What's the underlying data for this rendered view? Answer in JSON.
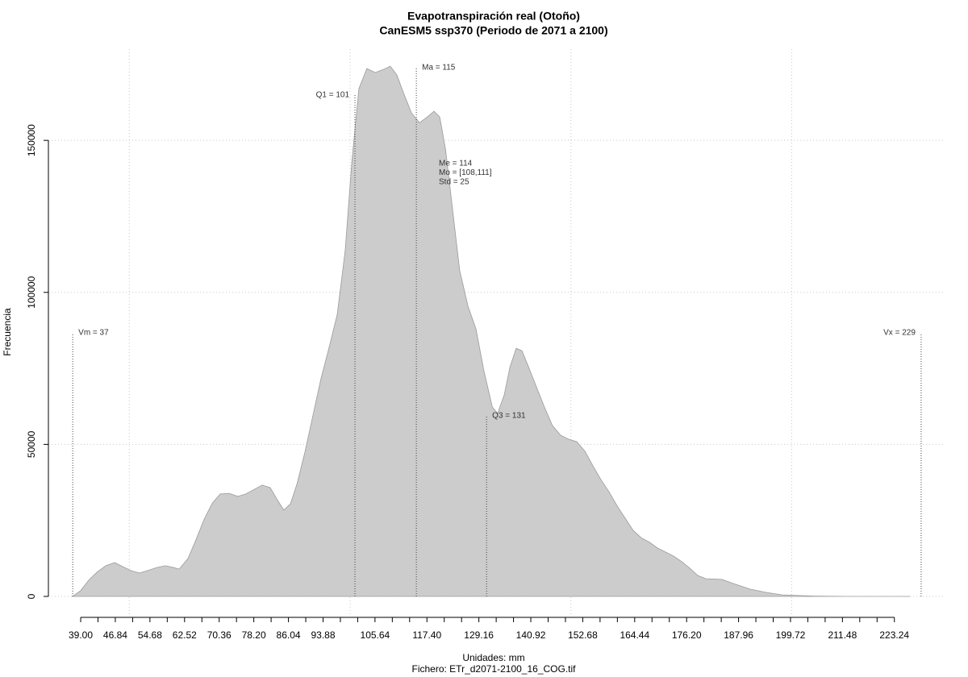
{
  "chart_data": {
    "type": "area",
    "title": "Evapotranspiración real (Otoño)",
    "subtitle": "CanESM5 ssp370 (Periodo de 2071 a 2100)",
    "xlabel": "Unidades: mm",
    "caption": "Fichero: ETr_d2071-2100_16_COG.tif",
    "ylabel": "Frecuencia",
    "color": "#cccccc",
    "edge_color": "#9a9a9a",
    "x": [
      37.2,
      39.0,
      40.8,
      42.7,
      44.7,
      46.7,
      48.5,
      50.3,
      52.3,
      54.2,
      56.2,
      58.2,
      60.0,
      61.3,
      63.3,
      65.1,
      66.9,
      68.8,
      70.6,
      72.6,
      74.6,
      76.4,
      78.3,
      80.1,
      81.9,
      83.7,
      85.0,
      86.5,
      88.0,
      89.8,
      91.6,
      93.4,
      95.3,
      97.1,
      98.9,
      100.4,
      102.0,
      103.8,
      105.7,
      107.5,
      109.1,
      110.6,
      112.1,
      113.9,
      115.7,
      117.5,
      119.0,
      120.3,
      121.6,
      123.0,
      124.8,
      126.7,
      128.5,
      130.3,
      132.2,
      133.4,
      134.9,
      136.2,
      137.6,
      138.9,
      140.4,
      142.2,
      144.0,
      145.8,
      147.7,
      149.5,
      151.3,
      153.2,
      155.0,
      156.8,
      158.6,
      160.5,
      162.3,
      164.1,
      165.9,
      167.8,
      169.6,
      171.4,
      173.2,
      175.1,
      176.9,
      178.7,
      180.6,
      184.2,
      186.9,
      190.6,
      194.3,
      197.9,
      201.6,
      205.2,
      212.5,
      226.8
    ],
    "values": [
      0,
      1900,
      5300,
      8000,
      10100,
      11100,
      9800,
      8500,
      7700,
      8500,
      9500,
      10100,
      9500,
      9000,
      12500,
      18600,
      25200,
      30700,
      33700,
      33900,
      32900,
      33700,
      35200,
      36600,
      35800,
      31300,
      28400,
      30500,
      37100,
      47700,
      59600,
      71600,
      82200,
      92800,
      114000,
      143100,
      167000,
      173600,
      172300,
      173300,
      174400,
      171500,
      165600,
      159000,
      155800,
      157700,
      159600,
      157700,
      147100,
      129900,
      107300,
      95400,
      88000,
      74200,
      62300,
      60200,
      66300,
      75500,
      81600,
      80800,
      75500,
      68900,
      62300,
      56200,
      53000,
      51700,
      50900,
      47700,
      42900,
      38400,
      34500,
      29700,
      25700,
      21700,
      19300,
      17800,
      15900,
      14600,
      13300,
      11400,
      9300,
      6900,
      5800,
      5600,
      4200,
      2400,
      1300,
      500,
      300,
      100,
      0,
      0
    ],
    "xlim": [
      31.69,
      234.43
    ],
    "ylim": [
      -5830,
      180000
    ],
    "xticks": [
      {
        "value": 39,
        "label": "39.00"
      },
      46.84,
      54.68,
      62.52,
      70.36,
      {
        "value": 78.2,
        "label": "78.20"
      },
      86.04,
      93.88,
      105.64,
      {
        "value": 117.4,
        "label": "117.40"
      },
      129.16,
      140.92,
      152.68,
      164.44,
      {
        "value": 176.2,
        "label": "176.20"
      },
      187.96,
      199.72,
      211.48,
      223.24
    ],
    "xminorticks": [
      42.92,
      50.76,
      58.6,
      66.44,
      74.28,
      82.12,
      89.96,
      97.8,
      101.72,
      109.56,
      113.48,
      121.32,
      125.24,
      133.08,
      137.0,
      144.84,
      148.76,
      156.6,
      160.52,
      168.36,
      172.28,
      180.12,
      184.04,
      191.88,
      195.8,
      203.64,
      207.56,
      215.4,
      219.32
    ],
    "xgrid": [
      50,
      100,
      150,
      200
    ],
    "yticks": [
      0,
      50000,
      100000,
      150000
    ],
    "grid": true,
    "markers": [
      {
        "label": "Vm = 37",
        "value": 37.2,
        "top": 86700,
        "side": "right"
      },
      {
        "label": "Q1 = 101",
        "value": 101.1,
        "top": 164900,
        "side": "left"
      },
      {
        "label": "Ma = 115",
        "value": 115,
        "top": 173900,
        "side": "right"
      },
      {
        "label": "Q3 = 131",
        "value": 130.9,
        "top": 59400,
        "side": "right"
      },
      {
        "label": "Vx = 229",
        "value": 229.3,
        "top": 86700,
        "side": "left"
      }
    ],
    "stats": [
      "Me = 114",
      "Mo = [108,111]",
      "Std = 25"
    ]
  }
}
